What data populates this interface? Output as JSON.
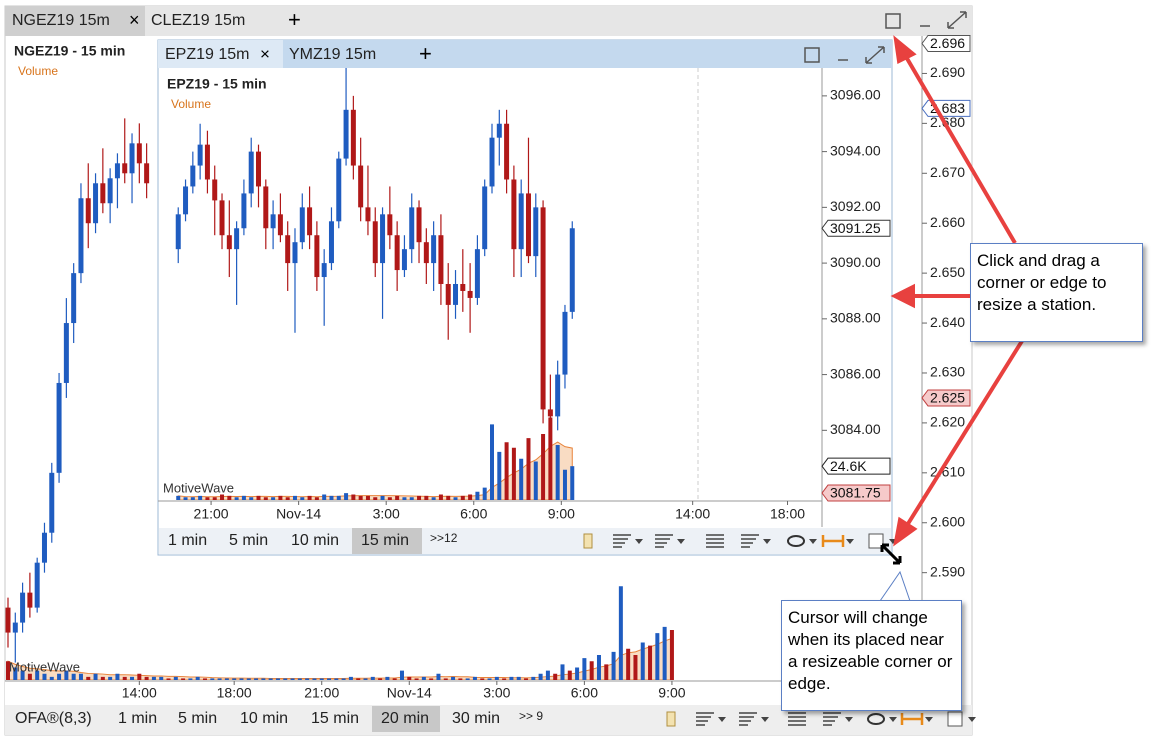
{
  "outer": {
    "tabs": [
      "NGEZ19 15m",
      "CLEZ19 15m"
    ],
    "title": "NGEZ19 - 15 min",
    "study": "Volume",
    "watermark": "MotiveWave",
    "ylim": [
      2.5685,
      2.6975
    ],
    "yticks": [
      {
        "value": 2.59,
        "label": "2.590"
      },
      {
        "value": 2.6,
        "label": "2.600"
      },
      {
        "value": 2.61,
        "label": "2.610"
      },
      {
        "value": 2.62,
        "label": "2.620"
      },
      {
        "value": 2.63,
        "label": "2.630"
      },
      {
        "value": 2.64,
        "label": "2.640"
      },
      {
        "value": 2.65,
        "label": "2.650"
      },
      {
        "value": 2.66,
        "label": "2.660"
      },
      {
        "value": 2.67,
        "label": "2.670"
      },
      {
        "value": 2.68,
        "label": "2.680"
      },
      {
        "value": 2.69,
        "label": "2.690"
      }
    ],
    "price_tags": [
      2.696,
      2.683,
      2.625
    ],
    "xlim": [
      0,
      125
    ],
    "xticks": [
      {
        "value": 18,
        "label": "14:00"
      },
      {
        "value": 31,
        "label": "18:00"
      },
      {
        "value": 43,
        "label": "21:00"
      },
      {
        "value": 55,
        "label": "Nov-14"
      },
      {
        "value": 67,
        "label": "3:00"
      },
      {
        "value": 79,
        "label": "6:00"
      },
      {
        "value": 91,
        "label": "9:00"
      }
    ],
    "candles": [
      [
        2.583,
        2.585,
        2.575,
        2.578
      ],
      [
        2.578,
        2.582,
        2.572,
        2.58
      ],
      [
        2.58,
        2.588,
        2.578,
        2.586
      ],
      [
        2.586,
        2.59,
        2.581,
        2.583
      ],
      [
        2.583,
        2.593,
        2.582,
        2.592
      ],
      [
        2.592,
        2.6,
        2.59,
        2.598
      ],
      [
        2.598,
        2.612,
        2.596,
        2.61
      ],
      [
        2.61,
        2.63,
        2.608,
        2.628
      ],
      [
        2.628,
        2.645,
        2.625,
        2.64
      ],
      [
        2.64,
        2.652,
        2.636,
        2.65
      ],
      [
        2.65,
        2.668,
        2.648,
        2.665
      ],
      [
        2.665,
        2.672,
        2.655,
        2.66
      ],
      [
        2.66,
        2.67,
        2.658,
        2.668
      ],
      [
        2.668,
        2.675,
        2.662,
        2.664
      ],
      [
        2.664,
        2.671,
        2.66,
        2.669
      ],
      [
        2.669,
        2.674,
        2.663,
        2.672
      ],
      [
        2.672,
        2.681,
        2.668,
        2.67
      ],
      [
        2.67,
        2.678,
        2.664,
        2.676
      ],
      [
        2.676,
        2.68,
        2.668,
        2.672
      ],
      [
        2.672,
        2.676,
        2.665,
        2.668
      ]
    ],
    "vlim": [
      0,
      32
    ],
    "volumes": [
      6,
      4,
      3,
      2,
      3,
      2,
      1,
      2,
      3,
      2,
      2,
      1,
      2,
      1,
      1,
      2,
      1,
      1,
      2,
      1,
      1,
      1,
      0.5,
      1,
      0.5,
      0.5,
      1,
      0.5,
      0.5,
      0.5,
      0.5,
      0.5,
      0.5,
      0.5,
      0.5,
      0.5,
      0.5,
      0.5,
      0.5,
      0.5,
      0.5,
      0.5,
      0.5,
      0.5,
      0.5,
      0.5,
      0.5,
      1,
      0.5,
      0.5,
      1,
      0.5,
      1,
      0.5,
      3,
      1,
      0.5,
      1,
      0.5,
      2,
      0.5,
      1,
      0.5,
      0.5,
      1,
      0.5,
      0.5,
      1,
      0.5,
      1,
      1,
      0.5,
      1,
      2,
      3,
      2,
      5,
      3,
      4,
      7,
      6,
      8,
      5,
      9,
      30,
      10,
      8,
      12,
      11,
      15,
      17,
      16
    ],
    "toolbar": {
      "study": "OFA®(8,3)",
      "intervals": [
        "1 min",
        "5 min",
        "10 min",
        "15 min",
        "20 min",
        "30 min"
      ],
      "selected": 4,
      "more": ">> 9"
    }
  },
  "inner": {
    "tabs": [
      "EPZ19 15m",
      "YMZ19 15m"
    ],
    "title": "EPZ19 - 15 min",
    "study": "Volume",
    "watermark": "MotiveWave",
    "ylim": [
      3081.5,
      3097
    ],
    "yticks": [
      {
        "value": 3084,
        "label": "3084.00"
      },
      {
        "value": 3086,
        "label": "3086.00"
      },
      {
        "value": 3088,
        "label": "3088.00"
      },
      {
        "value": 3090,
        "label": "3090.00"
      },
      {
        "value": 3092,
        "label": "3092.00"
      },
      {
        "value": 3094,
        "label": "3094.00"
      },
      {
        "value": 3096,
        "label": "3096.00"
      }
    ],
    "price_tags": [
      3091.25,
      3081.75
    ],
    "volume_tag": {
      "value": 24.6,
      "label": "24.6K"
    },
    "xlim": [
      0,
      91
    ],
    "xticks": [
      {
        "value": 7,
        "label": "21:00"
      },
      {
        "value": 19,
        "label": "Nov-14"
      },
      {
        "value": 31,
        "label": "3:00"
      },
      {
        "value": 43,
        "label": "6:00"
      },
      {
        "value": 55,
        "label": "9:00"
      },
      {
        "value": 73,
        "label": "14:00"
      },
      {
        "value": 86,
        "label": "18:00"
      }
    ],
    "candles": [
      [
        3090.5,
        3092,
        3090,
        3091.75
      ],
      [
        3091.75,
        3093,
        3091.5,
        3092.75
      ],
      [
        3092.75,
        3094,
        3092.5,
        3093.5
      ],
      [
        3093.5,
        3095,
        3093,
        3094.25
      ],
      [
        3094.25,
        3094.75,
        3092.5,
        3093
      ],
      [
        3093,
        3093.5,
        3091,
        3092.25
      ],
      [
        3092.25,
        3092.5,
        3090.5,
        3091
      ],
      [
        3091,
        3092.25,
        3089.5,
        3090.5
      ],
      [
        3090.5,
        3091.5,
        3088.5,
        3091.25
      ],
      [
        3091.25,
        3093,
        3091,
        3092.5
      ],
      [
        3092.5,
        3094.5,
        3092,
        3094
      ],
      [
        3094,
        3094.25,
        3092,
        3092.75
      ],
      [
        3092.75,
        3093,
        3090.5,
        3091.25
      ],
      [
        3091.25,
        3092.25,
        3090.5,
        3091.75
      ],
      [
        3091.75,
        3092.5,
        3090.75,
        3091
      ],
      [
        3091,
        3091.5,
        3089,
        3090
      ],
      [
        3090,
        3091.25,
        3087.5,
        3090.75
      ],
      [
        3090.75,
        3092.5,
        3090.5,
        3092
      ],
      [
        3092,
        3092.75,
        3090.5,
        3091
      ],
      [
        3091,
        3091.5,
        3089,
        3089.5
      ],
      [
        3089.5,
        3090.5,
        3087.75,
        3090
      ],
      [
        3090,
        3092,
        3089.75,
        3091.5
      ],
      [
        3091.5,
        3094,
        3091.25,
        3093.75
      ],
      [
        3093.75,
        3097,
        3093.5,
        3095.5
      ],
      [
        3095.5,
        3096,
        3093,
        3093.5
      ],
      [
        3093.5,
        3094.5,
        3091.5,
        3092
      ],
      [
        3092,
        3093.5,
        3091,
        3091.5
      ],
      [
        3091.5,
        3092,
        3089.5,
        3090
      ],
      [
        3090,
        3092,
        3088,
        3091.75
      ],
      [
        3091.75,
        3092.75,
        3090.5,
        3091
      ],
      [
        3091,
        3091.5,
        3089,
        3089.75
      ],
      [
        3089.75,
        3091,
        3089.5,
        3090.5
      ],
      [
        3090.5,
        3092.5,
        3090,
        3092
      ],
      [
        3092,
        3092.25,
        3090,
        3090.75
      ],
      [
        3090.75,
        3091.25,
        3089.25,
        3090
      ],
      [
        3090,
        3091.5,
        3089,
        3091
      ],
      [
        3091,
        3091.75,
        3088.5,
        3089.25
      ],
      [
        3089.25,
        3090,
        3087.25,
        3088.5
      ],
      [
        3088.5,
        3089.75,
        3088,
        3089.25
      ],
      [
        3089.25,
        3090.5,
        3088.25,
        3089
      ],
      [
        3089,
        3090,
        3087.5,
        3088.75
      ],
      [
        3088.75,
        3091,
        3088.5,
        3090.5
      ],
      [
        3090.5,
        3093,
        3090.25,
        3092.75
      ],
      [
        3092.75,
        3095,
        3092.5,
        3094.5
      ],
      [
        3094.5,
        3095.5,
        3093.5,
        3095
      ],
      [
        3095,
        3095.5,
        3092.5,
        3093
      ],
      [
        3093,
        3093.5,
        3089.5,
        3090.5
      ],
      [
        3090.5,
        3093,
        3089.5,
        3092.5
      ],
      [
        3092.5,
        3094.5,
        3090,
        3090.25
      ],
      [
        3090.25,
        3092.5,
        3089.5,
        3092
      ],
      [
        3092,
        3092.25,
        3084.25,
        3084.75
      ],
      [
        3084.75,
        3086,
        3083.75,
        3084.5
      ],
      [
        3084.5,
        3086.5,
        3084,
        3086
      ],
      [
        3086,
        3088.5,
        3085.5,
        3088.25
      ],
      [
        3088.25,
        3091.5,
        3088,
        3091.25
      ]
    ],
    "vlim": [
      0,
      80
    ],
    "volumes": [
      3,
      2,
      2,
      3,
      2,
      2,
      4,
      3,
      2,
      3,
      2,
      3,
      2,
      2,
      3,
      2,
      3,
      2,
      3,
      2,
      4,
      3,
      3,
      5,
      4,
      3,
      3,
      2,
      3,
      2,
      3,
      2,
      2,
      3,
      3,
      2,
      4,
      3,
      2,
      3,
      4,
      6,
      9,
      55,
      35,
      42,
      38,
      30,
      45,
      28,
      48,
      60,
      40,
      22,
      24.6
    ],
    "toolbar": {
      "intervals": [
        "1 min",
        "5 min",
        "10 min",
        "15 min"
      ],
      "selected": 3,
      "more": ">>12"
    }
  },
  "callouts": [
    "Click and drag a corner or edge to resize a station.",
    "Cursor will change when its placed near a resizeable corner or edge."
  ]
}
